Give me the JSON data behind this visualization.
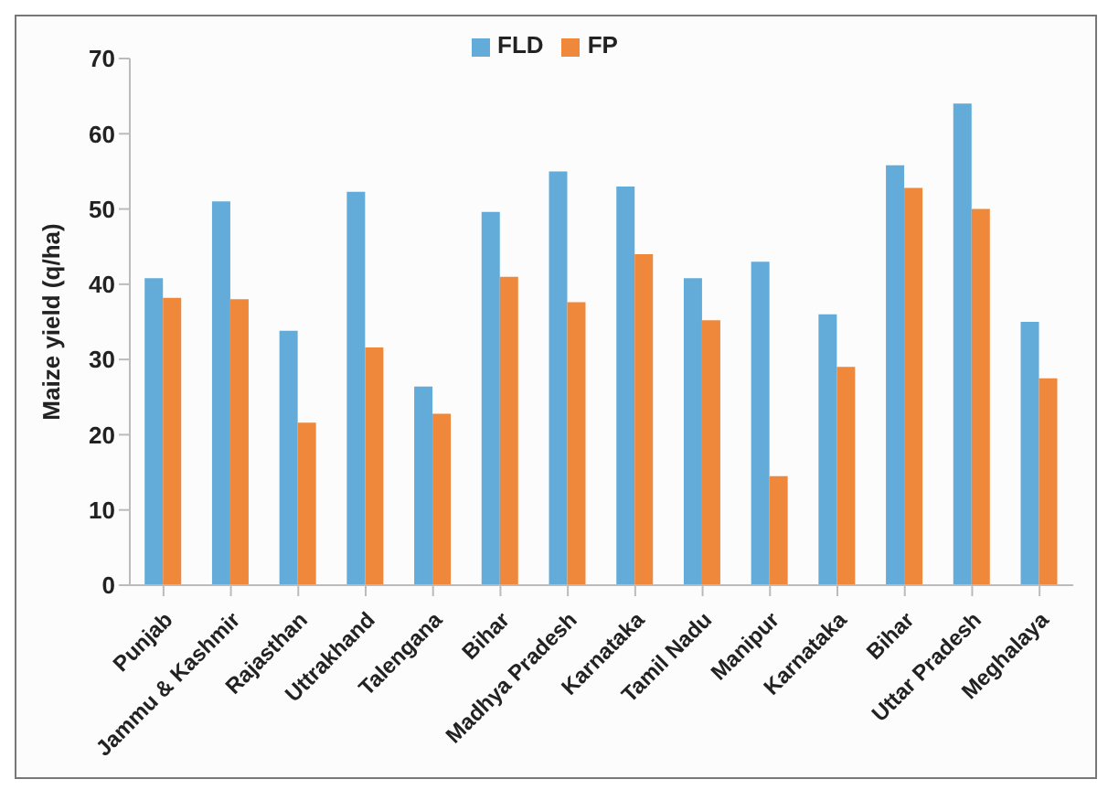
{
  "chart_data": {
    "type": "bar",
    "categories": [
      "Punjab",
      "Jammu & Kashmir",
      "Rajasthan",
      "Uttrakhand",
      "Talengana",
      "Bihar",
      "Madhya Pradesh",
      "Karnataka",
      "Tamil Nadu",
      "Manipur",
      "Karnataka",
      "Bihar",
      "Uttar Pradesh",
      "Meghalaya"
    ],
    "series": [
      {
        "name": "FLD",
        "color": "#63acd9",
        "values": [
          40.8,
          51,
          33.8,
          52.3,
          26.4,
          49.6,
          55,
          53,
          40.8,
          43,
          36,
          55.8,
          64,
          35
        ]
      },
      {
        "name": "FP",
        "color": "#ef883a",
        "values": [
          38.2,
          38,
          21.6,
          31.6,
          22.8,
          41,
          37.6,
          44,
          35.2,
          14.5,
          29,
          52.8,
          50,
          27.5
        ]
      }
    ],
    "ylabel": "Maize yield (q/ha)",
    "ylim": [
      0,
      70
    ],
    "yticks": [
      0,
      10,
      20,
      30,
      40,
      50,
      60,
      70
    ],
    "legend": "top",
    "grid": false
  }
}
